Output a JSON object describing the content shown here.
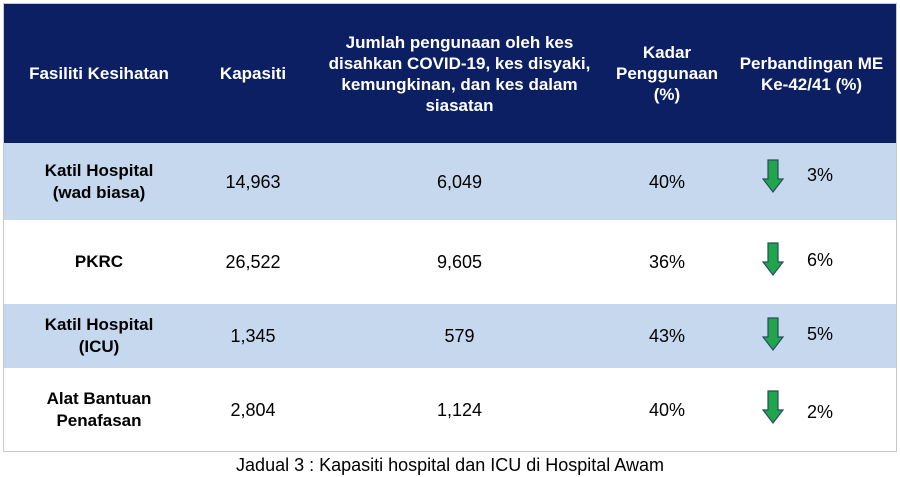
{
  "header": {
    "facility": "Fasiliti Kesihatan",
    "capacity": "Kapasiti",
    "usage": "Jumlah pengunaan oleh kes disahkan COVID-19, kes disyaki, kemungkinan, dan kes dalam siasatan",
    "rate": "Kadar Penggunaan (%)",
    "comparison": "Perbandingan ME Ke-42/41 (%)"
  },
  "rows": [
    {
      "facility": "Katil Hospital (wad biasa)",
      "capacity": "14,963",
      "usage": "6,049",
      "rate": "40%",
      "comparison": "3%",
      "trend_icon": "down-arrow-icon"
    },
    {
      "facility": "PKRC",
      "capacity": "26,522",
      "usage": "9,605",
      "rate": "36%",
      "comparison": "6%",
      "trend_icon": "down-arrow-icon"
    },
    {
      "facility": "Katil Hospital (ICU)",
      "capacity": "1,345",
      "usage": "579",
      "rate": "43%",
      "comparison": "5%",
      "trend_icon": "down-arrow-icon"
    },
    {
      "facility": "Alat Bantuan Penafasan",
      "capacity": "2,804",
      "usage": "1,124",
      "rate": "40%",
      "comparison": "2%",
      "trend_icon": "down-arrow-icon"
    }
  ],
  "caption": "Jadual 3 : Kapasiti hospital dan ICU di Hospital Awam",
  "colors": {
    "header_bg": "#0d1f63",
    "shaded_row_bg": "#c5d8ee",
    "arrow_fill": "#1fa64b",
    "arrow_stroke": "#2b4a66"
  }
}
